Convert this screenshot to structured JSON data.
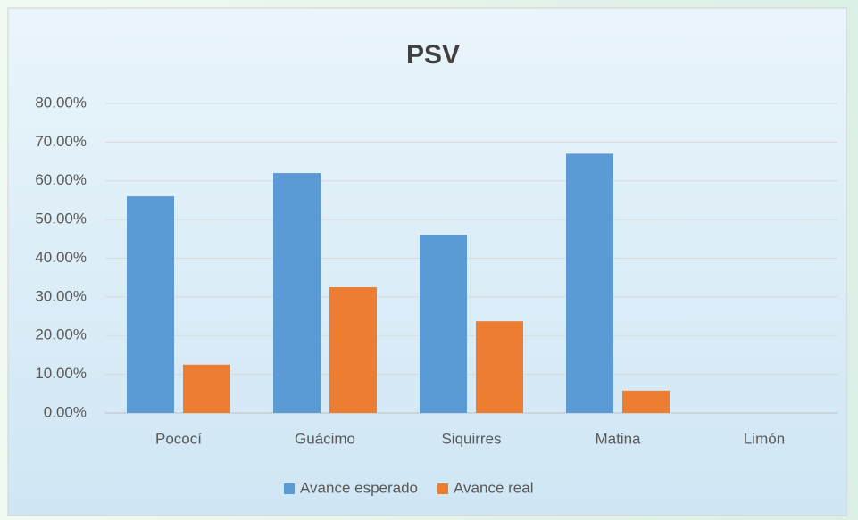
{
  "chart_data": {
    "type": "bar",
    "title": "PSV",
    "categories": [
      "Pococí",
      "Guácimo",
      "Siquirres",
      "Matina",
      "Limón"
    ],
    "series": [
      {
        "name": "Avance esperado",
        "color": "#5b9bd5",
        "values": [
          56,
          62,
          46,
          67,
          0
        ]
      },
      {
        "name": "Avance real",
        "color": "#ed7d31",
        "values": [
          12.5,
          32.5,
          23.7,
          5.8,
          0
        ]
      }
    ],
    "ylim": [
      0,
      80
    ],
    "yticks": [
      {
        "value": 0,
        "label": "0.00%"
      },
      {
        "value": 10,
        "label": "10.00%"
      },
      {
        "value": 20,
        "label": "20.00%"
      },
      {
        "value": 30,
        "label": "30.00%"
      },
      {
        "value": 40,
        "label": "40.00%"
      },
      {
        "value": 50,
        "label": "50.00%"
      },
      {
        "value": 60,
        "label": "60.00%"
      },
      {
        "value": 70,
        "label": "70.00%"
      },
      {
        "value": 80,
        "label": "80.00%"
      }
    ],
    "grid": true,
    "legend": "bottom"
  }
}
